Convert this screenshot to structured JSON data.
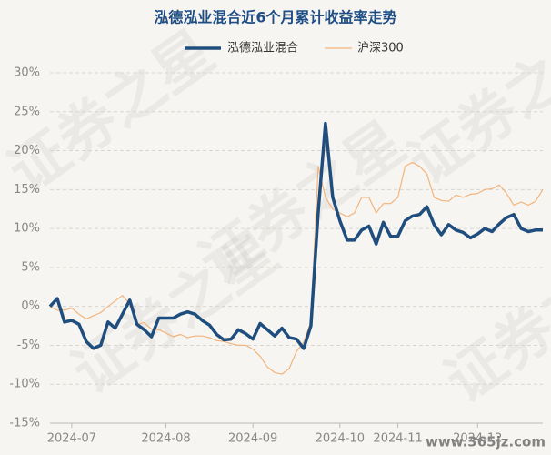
{
  "chart_data": {
    "type": "line",
    "title": "泓德泓业混合近6个月累计收益率走势",
    "watermark": "证券之星",
    "site_watermark": "www.365jz.com",
    "categories": [
      null,
      null,
      null,
      "2024-07",
      null,
      null,
      null,
      null,
      null,
      null,
      null,
      null,
      null,
      null,
      null,
      null,
      "2024-08",
      null,
      null,
      null,
      null,
      null,
      null,
      null,
      null,
      null,
      null,
      null,
      "2024-09",
      null,
      null,
      null,
      null,
      null,
      null,
      null,
      null,
      null,
      null,
      null,
      "2024-10",
      null,
      null,
      null,
      null,
      null,
      null,
      null,
      "2024-11",
      null,
      null,
      null,
      null,
      null,
      null,
      null,
      null,
      null,
      null,
      "2024-12",
      null,
      null,
      null,
      null,
      null,
      null,
      null,
      null,
      null
    ],
    "series": [
      {
        "name": "泓德泓业混合",
        "color": "#1f4e7e",
        "width": 3.5,
        "values": [
          0,
          1,
          -2,
          -1.8,
          -2.3,
          -4.5,
          -5.4,
          -5,
          -2,
          -2.8,
          -1,
          0.8,
          -2.3,
          -3,
          -3.9,
          -1.5,
          -1.5,
          -1.5,
          -1,
          -0.7,
          -1,
          -1.8,
          -2.4,
          -3.6,
          -4.3,
          -4.2,
          -3,
          -3.5,
          -4.2,
          -2.2,
          -3,
          -3.8,
          -2.8,
          -4,
          -4.2,
          -5.4,
          -2.5,
          12,
          23.5,
          14,
          11,
          8.5,
          8.5,
          9.8,
          10.3,
          8,
          10.8,
          9,
          9,
          11,
          11.6,
          11.8,
          12.8,
          10.5,
          9.2,
          10.5,
          9.8,
          9.5,
          8.8,
          9.3,
          10,
          9.6,
          10.6,
          11.4,
          11.8,
          10,
          9.6,
          9.8,
          9.8
        ]
      },
      {
        "name": "沪深300",
        "color": "#f2b47c",
        "width": 1.2,
        "values": [
          0,
          -0.5,
          -0.5,
          -0.2,
          -1,
          -1.6,
          -1.2,
          -0.8,
          0,
          0.7,
          1.4,
          0.3,
          -2.3,
          -2.1,
          -2.9,
          -3,
          -3.4,
          -3.9,
          -3.6,
          -4,
          -3.8,
          -3.8,
          -4,
          -4.4,
          -4.5,
          -4.8,
          -5,
          -5,
          -5.5,
          -6.4,
          -7.8,
          -8.5,
          -8.7,
          -8,
          -5.8,
          -4.6,
          -2,
          18,
          14,
          12.5,
          12,
          11.5,
          12,
          14,
          14,
          12,
          13.2,
          13.2,
          14,
          18,
          18.5,
          18,
          17,
          14,
          13.6,
          13.5,
          14.3,
          14,
          14.4,
          14.5,
          15,
          15.1,
          15.6,
          14.5,
          13,
          13.4,
          13,
          13.5,
          15
        ]
      }
    ],
    "ylim": [
      -15,
      30
    ],
    "yticks": [
      {
        "value": -15,
        "label": "-15%"
      },
      {
        "value": -10,
        "label": "-10%"
      },
      {
        "value": -5,
        "label": "-5%"
      },
      {
        "value": 0,
        "label": "0%"
      },
      {
        "value": 5,
        "label": "5%"
      },
      {
        "value": 10,
        "label": "10%"
      },
      {
        "value": 15,
        "label": "15%"
      },
      {
        "value": 20,
        "label": "20%"
      },
      {
        "value": 25,
        "label": "25%"
      },
      {
        "value": 30,
        "label": "30%"
      }
    ],
    "grid": true
  }
}
